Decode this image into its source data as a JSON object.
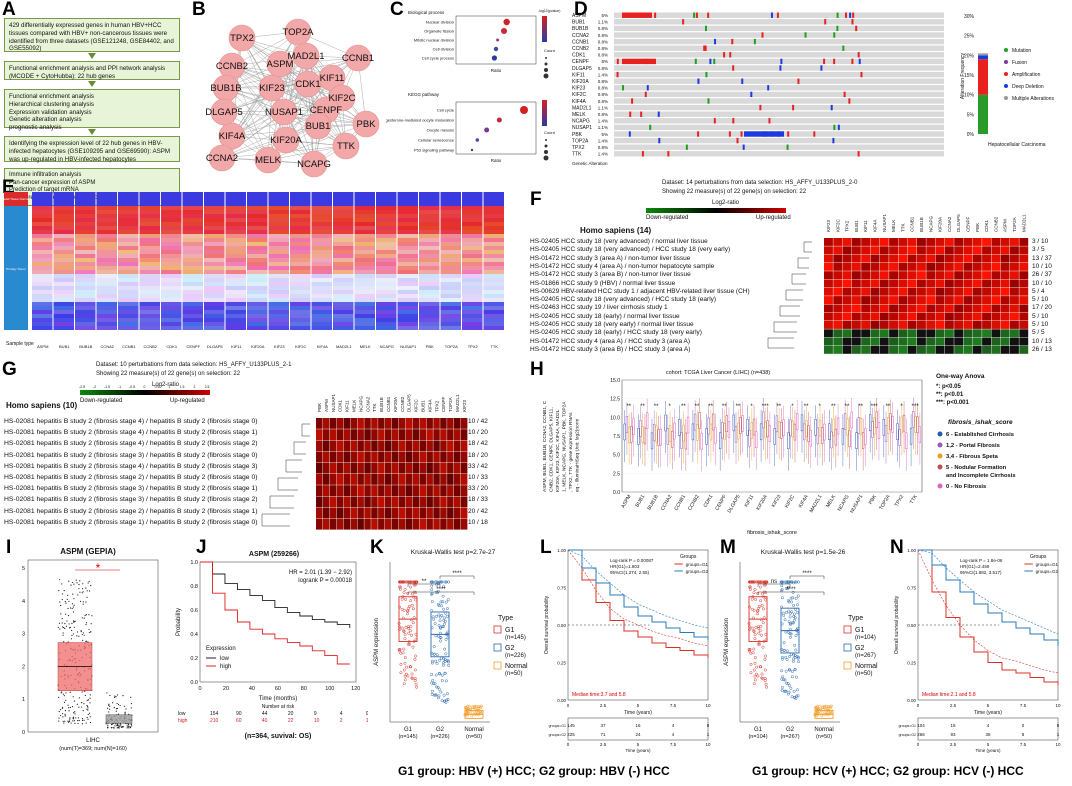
{
  "panels": {
    "A": "A",
    "B": "B",
    "C": "C",
    "D": "D",
    "E": "E",
    "F": "F",
    "G": "G",
    "H": "H",
    "I": "I",
    "J": "J",
    "K": "K",
    "L": "L",
    "M": "M",
    "N": "N"
  },
  "flow": {
    "box1": "429 differentially expressed genes in human HBV+HCC tissues compared with HBV+ non-cancerous tissues were identified from three datasets (GSE121248, GSE84402, and GSE55092)",
    "box2": "Functional enrichment analysis and PPI network analysis (MCODE + CytoHubba): 22 hub genes",
    "box3": "Functional enrichment analysis\nHierarchical clustering analysis\nExpression validation analysis\nGenetic alteration analysis\nprognostic analysis",
    "box4": "Identifying the expression level of 22 hub genes in HBV-infected hepatocytes (GSE109295 and GSE69590): ASPM was up-regulated in HBV-infected hepatocytes",
    "box5": "Immune infiltration analysis\nPan-cancer expression of ASPM\nPrediction of target mRNA\nCo-expression genes identification"
  },
  "network": {
    "genes": [
      "TOP2A",
      "TPX2",
      "MAD2L1",
      "CCNB1",
      "CCNB2",
      "ASPM",
      "KIF11",
      "BUB1B",
      "KIF23",
      "CDK1",
      "KIF2C",
      "CENPF",
      "DLGAP5",
      "NUSAP1",
      "BUB1",
      "PBK",
      "KIF4A",
      "KIF20A",
      "TTK",
      "CCNA2",
      "MELK",
      "NCAPG"
    ]
  },
  "go": {
    "bp_title": "Biological process",
    "kegg_title": "KEGG pathway",
    "xlabel": "Ratio",
    "bp_terms": [
      "Nuclear division",
      "Organelle fission",
      "Mitotic nuclear division",
      "Cell division",
      "Cell cycle process"
    ],
    "kegg_terms": [
      "Cell cycle",
      "Progesterone-mediated oocyte maturation",
      "Oocyte meiosis",
      "Cellular senescence",
      "P53 signaling pathway"
    ],
    "legend_p": "-log10(pvalue)",
    "legend_count": "Count"
  },
  "oncoprint": {
    "genes": [
      "ASPM",
      "BUB1",
      "BUB1B",
      "CCNA2",
      "CCNB1",
      "CCNB2",
      "CDK1",
      "CENPF",
      "DLGAP5",
      "KIF11",
      "KIF20A",
      "KIF23",
      "KIF2C",
      "KIF4A",
      "MAD2L1",
      "MELK",
      "NCAPG",
      "NUSAP1",
      "PBK",
      "TOP2A",
      "TPX2",
      "TTK"
    ],
    "pcts": [
      "5%",
      "1.1%",
      "0.8%",
      "0.8%",
      "0.8%",
      "0.8%",
      "0.8%",
      "5%",
      "0.8%",
      "1.4%",
      "0.8%",
      "0.8%",
      "0.8%",
      "0.8%",
      "1.1%",
      "0.8%",
      "1.4%",
      "1.1%",
      "5%",
      "1.4%",
      "0.8%",
      "1.4%"
    ],
    "alt_title": "Alteration Frequency",
    "cancer": "Hepatocellular Carcinoma",
    "legend": [
      "Mutation",
      "Fusion",
      "Amplification",
      "Deep Deletion",
      "Multiple Alterations"
    ],
    "yticks": [
      "30%",
      "25%",
      "20%",
      "15%",
      "10%",
      "5%",
      "0%"
    ],
    "footer": "Genetic Alteration"
  },
  "heatE": {
    "genes": [
      "ASPM",
      "BUB1",
      "BUB1B",
      "CCNA2",
      "CCNB1",
      "CCNB2",
      "CDK1",
      "CENPF",
      "DLGAP5",
      "KIF11",
      "KIF20A",
      "KIF23",
      "KIF2C",
      "KIF4A",
      "MAD2L1",
      "MELK",
      "NCAPG",
      "NUSAP1",
      "PBK",
      "TOP2A",
      "TPX2",
      "TTK"
    ],
    "side_top": "Solid Tissue Normal",
    "side_bottom": "Primary Tumor",
    "sample_type": "Sample type"
  },
  "heatF": {
    "dataset": "Dataset: 14 perturbations from data selection: HS_AFFY_U133PLUS_2-0",
    "showing": "Showing 22 measure(s) of 22 gene(s) on selection: 22",
    "species": "Homo sapiens (14)",
    "down": "Down-regulated",
    "up": "Up-regulated",
    "scale": "Log2-ratio",
    "cols": [
      "KIF23",
      "KIF2C",
      "TPX2",
      "BUB1",
      "KIF11",
      "KIF4A",
      "NUSAP1",
      "MELK",
      "TTK",
      "CCNB1",
      "BUB1B",
      "NCAPG",
      "KIF20A",
      "CCNA2",
      "DLGAP5",
      "CENPF",
      "PBK",
      "CDK1",
      "CCNB2",
      "ASPM",
      "TOP2A",
      "MAD2L1"
    ],
    "rows": [
      "HS-02405 HCC study 18 (very advanced) / normal liver tissue",
      "HS-02405 HCC study 18 (very advanced) / HCC study 18 (very early)",
      "HS-01472 HCC study 3 (area A) / non-tumor liver tissue",
      "HS-01472 HCC study 4 (area A) / non-tumor hepatocyte sample",
      "HS-01472 HCC study 3 (area B) / non-tumor liver tissue",
      "HS-01866 HCC study 9 (HBV) / normal liver tissue",
      "HS-00629 HBV-related HCC study 1 / adjacent HBV-related liver tissue (CH)",
      "HS-02405 HCC study 18 (very advanced) / HCC study 18 (early)",
      "HS-02463 HCC study 19 / liver cirrhosis study 1",
      "HS-02405 HCC study 18 (early) / normal liver tissue",
      "HS-02405 HCC study 18 (very early) / normal liver tissue",
      "HS-02405 HCC study 18 (early) / HCC study 18 (very early)",
      "HS-01472 HCC study 4 (area A) / HCC study 3 (area A)",
      "HS-01472 HCC study 3 (area B) / HCC study 3 (area A)"
    ],
    "fracs": [
      "3 / 10",
      "3 / 5",
      "13 / 37",
      "10 / 10",
      "26 / 37",
      "10 / 10",
      "5 / 4",
      "5 / 10",
      "17 / 20",
      "5 / 10",
      "5 / 10",
      "5 / 5",
      "10 / 13",
      "26 / 13"
    ]
  },
  "heatG": {
    "dataset": "Dataset: 10 perturbations from data selection: HS_AFFY_U133PLUS_2-1",
    "showing": "Showing 22 measure(s) of 22 gene(s) on selection: 22",
    "species": "Homo sapiens (10)",
    "down": "Down-regulated",
    "up": "Up-regulated",
    "scale": "Log2-ratio",
    "scale_ticks": [
      "-2.5",
      "-2",
      "-1.5",
      "-1",
      "-0.5",
      "0",
      "0.5",
      "1",
      "1.5",
      "2",
      "2.5"
    ],
    "cols": [
      "PBK",
      "ASPM",
      "NUSAP1",
      "CDK1",
      "KIF11",
      "MELK",
      "NCAPG",
      "CCNA2",
      "TTK",
      "BUB1B",
      "CCNB1",
      "KIF20A",
      "CCNB2",
      "DLGAP5",
      "KIF2C",
      "BUB1",
      "KIF4A",
      "TPX2",
      "CENPF",
      "TOP2A",
      "MAD2L1",
      "KIF23"
    ],
    "rows": [
      "HS-02081 hepatitis B study 2 (fibrosis stage 4) / hepatitis B study 2 (fibrosis stage 0)",
      "HS-02081 hepatitis B study 2 (fibrosis stage 4) / hepatitis B study 2 (fibrosis stage 1)",
      "HS-02081 hepatitis B study 2 (fibrosis stage 4) / hepatitis B study 2 (fibrosis stage 2)",
      "HS-02081 hepatitis B study 2 (fibrosis stage 3) / hepatitis B study 2 (fibrosis stage 0)",
      "HS-02081 hepatitis B study 2 (fibrosis stage 4) / hepatitis B study 2 (fibrosis stage 3)",
      "HS-02081 hepatitis B study 2 (fibrosis stage 2) / hepatitis B study 2 (fibrosis stage 0)",
      "HS-02081 hepatitis B study 2 (fibrosis stage 3) / hepatitis B study 2 (fibrosis stage 1)",
      "HS-02081 hepatitis B study 2 (fibrosis stage 3) / hepatitis B study 2 (fibrosis stage 2)",
      "HS-02081 hepatitis B study 2 (fibrosis stage 2) / hepatitis B study 2 (fibrosis stage 1)",
      "HS-02081 hepatitis B study 2 (fibrosis stage 1) / hepatitis B study 2 (fibrosis stage 0)"
    ],
    "fracs": [
      "10 / 42",
      "10 / 20",
      "18 / 42",
      "18 / 20",
      "33 / 42",
      "10 / 33",
      "33 / 20",
      "18 / 33",
      "20 / 42",
      "10 / 18"
    ]
  },
  "boxH": {
    "title": "cohort: TCGA Liver Cancer (LIHC) (n=438)",
    "ylabel": "ASPM, BUB1, BUB1B, CCNA2, CCNB1, CCNB2, CDK1, CENPF, DLGAP5, KIF11, KIF20A, KIF23, KIF2C, KIF4A, MAD2L1, MELK, NCAPG, NUSAP1, PBK, TOP2A, TPX2, TTK - gene expression RNAseq - IlluminaHiSeq Unit: log2(norm_count+1)",
    "xlabel": "fibrosis_ishak_score",
    "genes": [
      "ASPM",
      "BUB1",
      "BUB1B",
      "CCNA2",
      "CCNB1",
      "CCNB2",
      "CDK1",
      "CENPF",
      "DLGAP5",
      "KIF11",
      "KIF20A",
      "KIF23",
      "KIF2C",
      "KIF4A",
      "MAD2L1",
      "MELK",
      "NCAPG",
      "NUSAP1",
      "PBK",
      "TOP2A",
      "TPX2",
      "TTK"
    ],
    "sig": [
      "**",
      "**",
      "**",
      "*",
      "**",
      "**",
      "**",
      "**",
      "**",
      "*",
      "***",
      "**",
      "*",
      "**",
      "*",
      "**",
      "**",
      "**",
      "***",
      "**",
      "*",
      "***"
    ],
    "anova_title": "One-way Anova",
    "anova": [
      "*: p<0.05",
      "**: p<0.01",
      "***: p<0.001"
    ],
    "legend_title": "fibrosis_ishak_score",
    "legend": [
      "6 - Established Cirrhosis",
      "1,2 - Portal Fibrosis",
      "3,4 - Fibrous Speta",
      "5 - Nodular Formation and Incomplete Cirrhosis",
      "0 - No Fibrosis"
    ],
    "yticks": [
      "15.0",
      "12.5",
      "10.0",
      "7.5",
      "5.0",
      "2.5",
      "0.0"
    ]
  },
  "gepia": {
    "title": "ASPM (GEPIA)",
    "xlabel": "LIHC",
    "counts": "(num(T)=369; num(N)=160)",
    "star": "*",
    "yticks": [
      "5",
      "4",
      "3",
      "2",
      "1",
      "0"
    ]
  },
  "km": {
    "title": "ASPM (259266)",
    "hr": "HR = 2.01 (1.39 − 2.92)",
    "logrank": "logrank P = 0.00018",
    "ylabel": "Probability",
    "xlabel": "Time (months)",
    "legend_title": "Expression",
    "low": "low",
    "high": "high",
    "risk_title": "Number at risk",
    "low_row": [
      "low",
      "154",
      "90",
      "44",
      "20",
      "9",
      "4",
      "0"
    ],
    "high_row": [
      "high",
      "210",
      "60",
      "40",
      "22",
      "10",
      "2",
      "1"
    ],
    "caption": "(n=364, suvival: OS)",
    "xticks": [
      "0",
      "20",
      "40",
      "60",
      "80",
      "100",
      "120"
    ],
    "yticks": [
      "1.0",
      "0.8",
      "0.6",
      "0.4",
      "0.2",
      "0.0"
    ]
  },
  "boxK": {
    "title": "Kruskal-Wallis test p=2.7e-27",
    "ylabel": "ASPM expression",
    "groups": [
      "G1\n(n=145)",
      "G2\n(n=226)",
      "Normal\n(n=50)"
    ],
    "xlab": [
      "G1",
      "G2",
      "Normal"
    ],
    "xn": [
      "(n=145)",
      "(n=226)",
      "(n=50)"
    ],
    "legend_title": "Type",
    "legend": [
      "G1\n(n=145)",
      "G2\n(n=226)",
      "Normal\n(n=50)"
    ],
    "leg_name": [
      "G1",
      "G2",
      "Normal"
    ],
    "leg_n": [
      "(n=145)",
      "(n=226)",
      "(n=50)"
    ],
    "sig": [
      "**",
      "****",
      "****"
    ]
  },
  "kmL": {
    "logrank": "Log-rank P = 0.00087",
    "hr": "HR(G1)=1.803",
    "ci": "95%CI(1.274, 2.55)",
    "ylabel": "Overall survival probability",
    "xlabel": "Time (years)",
    "groups_title": "Groups",
    "g1": "groups=G1",
    "g2": "groups=G2",
    "median": "Median time:3.7 and 5.8",
    "risk1": [
      "145",
      "37",
      "16",
      "4",
      "0"
    ],
    "risk2": [
      "225",
      "71",
      "24",
      "4",
      "1"
    ],
    "xticks": [
      "0",
      "2.5",
      "5",
      "7.5",
      "10"
    ],
    "yticks": [
      "1.00",
      "0.75",
      "0.50",
      "0.25",
      "0.00"
    ]
  },
  "boxM": {
    "title": "Kruskal-Wallis test p=1.5e-26",
    "ylabel": "ASPM expression",
    "xlab": [
      "G1",
      "G2",
      "Normal"
    ],
    "xn": [
      "(n=104)",
      "(n=267)",
      "(n=50)"
    ],
    "legend_title": "Type",
    "leg_name": [
      "G1",
      "G2",
      "Normal"
    ],
    "leg_n": [
      "(n=104)",
      "(n=267)",
      "(n=50)"
    ],
    "sig": [
      "ns",
      "****",
      "****"
    ]
  },
  "kmN": {
    "logrank": "Log-rank P = 1.8e-06",
    "hr": "HR(G1)=2.459",
    "ci": "95%CI(1.682, 3.517)",
    "ylabel": "Overall survival probability",
    "xlabel": "Time (years)",
    "groups_title": "Groups",
    "g1": "groups=G1",
    "g2": "groups=G2",
    "median": "Median time:2.1 and 5.8",
    "risk1": [
      "104",
      "15",
      "4",
      "0",
      "0"
    ],
    "risk2": [
      "266",
      "93",
      "36",
      "8",
      "1"
    ],
    "xticks": [
      "0",
      "2.5",
      "5",
      "7.5",
      "10"
    ],
    "yticks": [
      "1.00",
      "0.75",
      "0.50",
      "0.25",
      "0.00"
    ]
  },
  "captions": {
    "hbv": "G1 group: HBV (+) HCC;  G2 group: HBV (-) HCC",
    "hcv": "G1 group: HCV (+) HCC;  G2 group: HCV (-) HCC"
  },
  "chart_data": [
    {
      "type": "scatter",
      "panel": "C-top",
      "title": "Biological process",
      "xlabel": "Ratio",
      "categories": [
        "Nuclear division",
        "Organelle fission",
        "Mitotic nuclear division",
        "Cell division",
        "Cell cycle process"
      ],
      "values": [
        19.5,
        19.0,
        17.8,
        17.5,
        17.2
      ],
      "xlim": [
        10,
        25
      ]
    },
    {
      "type": "scatter",
      "panel": "C-bottom",
      "title": "KEGG pathway",
      "xlabel": "Ratio",
      "categories": [
        "Cell cycle",
        "Progesterone-mediated oocyte maturation",
        "Oocyte meiosis",
        "Cellular senescence",
        "P53 signaling pathway"
      ],
      "values": [
        10.2,
        6.5,
        4.6,
        3.2,
        2.4
      ],
      "xlim": [
        0,
        12
      ]
    },
    {
      "type": "bar",
      "panel": "D-right",
      "title": "Alteration Frequency",
      "categories": [
        "Hepatocellular Carcinoma"
      ],
      "series": [
        {
          "name": "Mutation",
          "values": [
            10
          ]
        },
        {
          "name": "Amplification",
          "values": [
            9
          ]
        },
        {
          "name": "Deep Deletion",
          "values": [
            1
          ]
        },
        {
          "name": "Multiple Alterations",
          "values": [
            0.5
          ]
        }
      ],
      "ylim": [
        0,
        30
      ]
    },
    {
      "type": "line",
      "panel": "J",
      "title": "ASPM (259266)",
      "xlabel": "Time (months)",
      "ylabel": "Probability",
      "series": [
        {
          "name": "low",
          "x": [
            0,
            10,
            20,
            30,
            40,
            50,
            60,
            70,
            80,
            90,
            100,
            110,
            120
          ],
          "values": [
            1.0,
            0.9,
            0.82,
            0.77,
            0.72,
            0.68,
            0.62,
            0.58,
            0.55,
            0.52,
            0.5,
            0.48,
            0.45
          ]
        },
        {
          "name": "high",
          "x": [
            0,
            10,
            20,
            30,
            40,
            50,
            60,
            70,
            80,
            90,
            100,
            110,
            120
          ],
          "values": [
            1.0,
            0.74,
            0.6,
            0.5,
            0.44,
            0.4,
            0.36,
            0.33,
            0.3,
            0.26,
            0.22,
            0.15,
            0.15
          ]
        }
      ],
      "xlim": [
        0,
        125
      ],
      "ylim": [
        0,
        1
      ]
    },
    {
      "type": "box",
      "panel": "I",
      "title": "ASPM (GEPIA)",
      "categories": [
        "Tumor",
        "Normal"
      ],
      "values": [
        2.0,
        0.25
      ],
      "ylim": [
        0,
        5.5
      ]
    },
    {
      "type": "box",
      "panel": "K",
      "title": "Kruskal-Wallis test p=2.7e-27",
      "categories": [
        "G1",
        "G2",
        "Normal"
      ],
      "values": [
        2.7,
        2.3,
        0.2
      ]
    },
    {
      "type": "line",
      "panel": "L",
      "xlabel": "Time (years)",
      "ylabel": "Overall survival probability",
      "series": [
        {
          "name": "groups=G1",
          "x": [
            0,
            1,
            2,
            3,
            4,
            5,
            6,
            7,
            8,
            9,
            10
          ],
          "values": [
            1.0,
            0.8,
            0.65,
            0.53,
            0.46,
            0.42,
            0.38,
            0.35,
            0.33,
            0.3,
            0.28
          ]
        },
        {
          "name": "groups=G2",
          "x": [
            0,
            1,
            2,
            3,
            4,
            5,
            6,
            7,
            8,
            9,
            10
          ],
          "values": [
            1.0,
            0.88,
            0.78,
            0.7,
            0.62,
            0.56,
            0.52,
            0.48,
            0.45,
            0.42,
            0.4
          ]
        }
      ],
      "xlim": [
        0,
        10
      ],
      "ylim": [
        0,
        1
      ]
    },
    {
      "type": "box",
      "panel": "M",
      "title": "Kruskal-Wallis test p=1.5e-26",
      "categories": [
        "G1",
        "G2",
        "Normal"
      ],
      "values": [
        2.7,
        2.4,
        0.2
      ]
    },
    {
      "type": "line",
      "panel": "N",
      "xlabel": "Time (years)",
      "ylabel": "Overall survival probability",
      "series": [
        {
          "name": "groups=G1",
          "x": [
            0,
            1,
            2,
            3,
            4,
            5,
            6,
            7,
            8,
            9,
            10
          ],
          "values": [
            1.0,
            0.72,
            0.55,
            0.42,
            0.32,
            0.25,
            0.2,
            0.18,
            0.15,
            0.12,
            0.1
          ]
        },
        {
          "name": "groups=G2",
          "x": [
            0,
            1,
            2,
            3,
            4,
            5,
            6,
            7,
            8,
            9,
            10
          ],
          "values": [
            1.0,
            0.9,
            0.8,
            0.72,
            0.64,
            0.58,
            0.52,
            0.48,
            0.44,
            0.4,
            0.36
          ]
        }
      ],
      "xlim": [
        0,
        10
      ],
      "ylim": [
        0,
        1
      ]
    }
  ]
}
